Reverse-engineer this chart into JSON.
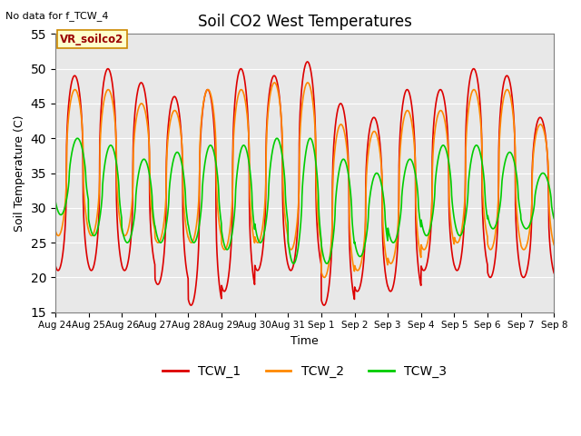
{
  "title": "Soil CO2 West Temperatures",
  "no_data_text": "No data for f_TCW_4",
  "annotation_text": "VR_soilco2",
  "xlabel": "Time",
  "ylabel": "Soil Temperature (C)",
  "ylim": [
    15,
    55
  ],
  "yticks": [
    15,
    20,
    25,
    30,
    35,
    40,
    45,
    50,
    55
  ],
  "xtick_labels": [
    "Aug 24",
    "Aug 25",
    "Aug 26",
    "Aug 27",
    "Aug 28",
    "Aug 29",
    "Aug 30",
    "Aug 31",
    "Sep 1",
    "Sep 2",
    "Sep 3",
    "Sep 4",
    "Sep 5",
    "Sep 6",
    "Sep 7",
    "Sep 8"
  ],
  "series": {
    "TCW_1": {
      "color": "#dd0000",
      "lw": 1.2
    },
    "TCW_2": {
      "color": "#ff8800",
      "lw": 1.2
    },
    "TCW_3": {
      "color": "#00cc00",
      "lw": 1.2
    }
  },
  "bg_color": "#e8e8e8",
  "fig_color": "#ffffff",
  "n_days": 15,
  "samples_per_day": 144
}
